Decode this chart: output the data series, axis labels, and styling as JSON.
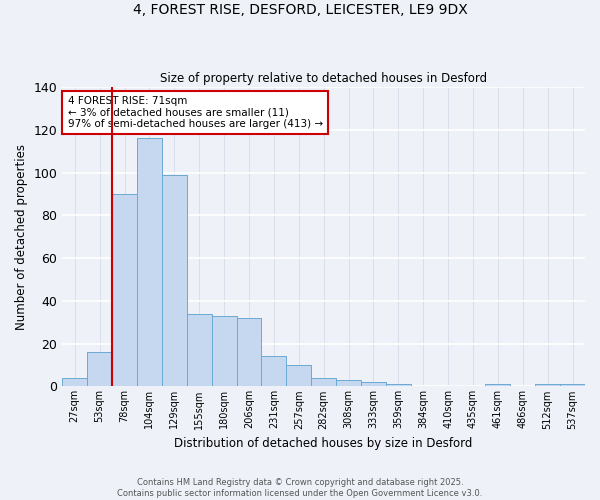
{
  "title1": "4, FOREST RISE, DESFORD, LEICESTER, LE9 9DX",
  "title2": "Size of property relative to detached houses in Desford",
  "xlabel": "Distribution of detached houses by size in Desford",
  "ylabel": "Number of detached properties",
  "categories": [
    "27sqm",
    "53sqm",
    "78sqm",
    "104sqm",
    "129sqm",
    "155sqm",
    "180sqm",
    "206sqm",
    "231sqm",
    "257sqm",
    "282sqm",
    "308sqm",
    "333sqm",
    "359sqm",
    "384sqm",
    "410sqm",
    "435sqm",
    "461sqm",
    "486sqm",
    "512sqm",
    "537sqm"
  ],
  "values": [
    4,
    16,
    90,
    116,
    99,
    34,
    33,
    32,
    14,
    10,
    4,
    3,
    2,
    1,
    0,
    0,
    0,
    1,
    0,
    1,
    1
  ],
  "bar_color": "#c5d8f0",
  "bar_edge_color": "#6aaad4",
  "background_color": "#eef2f8",
  "grid_color": "#d8dfe8",
  "red_line_x": 1.5,
  "annotation_text": "4 FOREST RISE: 71sqm\n← 3% of detached houses are smaller (11)\n97% of semi-detached houses are larger (413) →",
  "annotation_box_color": "#ffffff",
  "annotation_box_edge_color": "#cc0000",
  "ylim": [
    0,
    140
  ],
  "yticks": [
    0,
    20,
    40,
    60,
    80,
    100,
    120,
    140
  ],
  "footer1": "Contains HM Land Registry data © Crown copyright and database right 2025.",
  "footer2": "Contains public sector information licensed under the Open Government Licence v3.0."
}
